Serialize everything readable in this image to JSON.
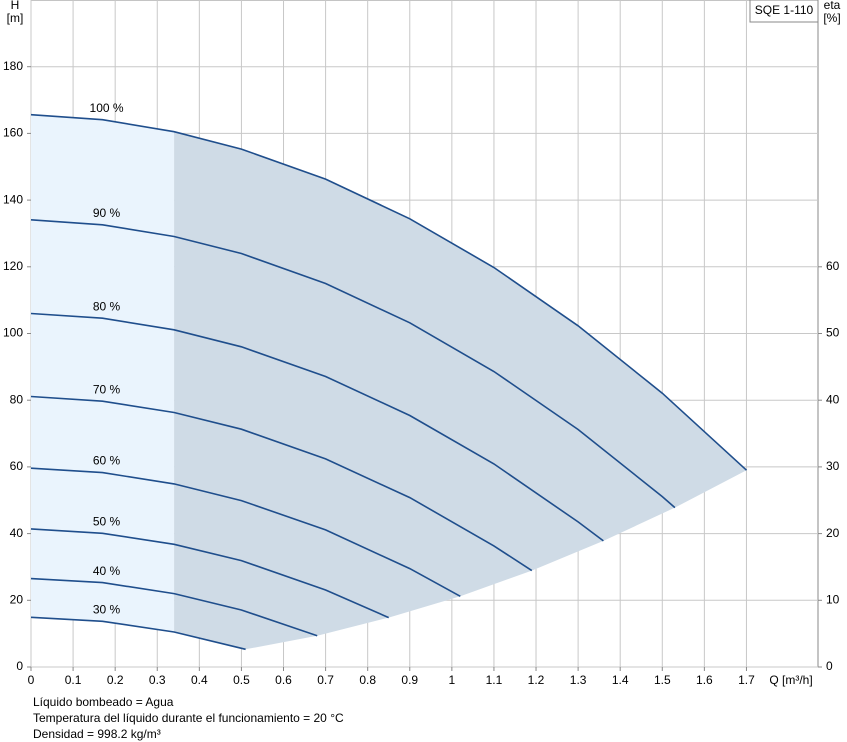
{
  "chart_data": {
    "type": "line",
    "legend_title": "SQE 1-110",
    "x_label": "Q [m³/h]",
    "y_label": [
      "H",
      "[m]"
    ],
    "y2_label": [
      "eta",
      "[%]"
    ],
    "xlim": [
      0,
      1.87
    ],
    "xticks": [
      0,
      0.1,
      0.2,
      0.3,
      0.4,
      0.5,
      0.6,
      0.7,
      0.8,
      0.9,
      1,
      1.1,
      1.2,
      1.3,
      1.4,
      1.5,
      1.6,
      1.7
    ],
    "ylim": [
      0,
      200
    ],
    "yticks": [
      0,
      20,
      40,
      60,
      80,
      100,
      120,
      140,
      160,
      180
    ],
    "y2lim": [
      0,
      100
    ],
    "y2ticks": [
      0,
      10,
      20,
      30,
      40,
      50,
      60
    ],
    "grid": true,
    "color": "#1f4e8c",
    "series": [
      {
        "name": "100 %",
        "x": [
          0,
          0.17,
          0.34,
          0.5,
          0.7,
          0.9,
          1.1,
          1.3,
          1.5,
          1.7
        ],
        "values": [
          165.6,
          164.1,
          160.5,
          155.3,
          146.3,
          134.4,
          119.8,
          102.3,
          82.1,
          59.0
        ]
      },
      {
        "name": "90 %",
        "x": [
          0,
          0.17,
          0.34,
          0.5,
          0.7,
          0.9,
          1.1,
          1.3,
          1.5,
          1.53
        ],
        "values": [
          134.1,
          132.6,
          129.1,
          124.0,
          115.0,
          103.2,
          88.6,
          71.2,
          51.1,
          47.8
        ]
      },
      {
        "name": "80 %",
        "x": [
          0,
          0.17,
          0.34,
          0.5,
          0.7,
          0.9,
          1.1,
          1.3,
          1.36
        ],
        "values": [
          106.0,
          104.6,
          101.1,
          96.0,
          87.1,
          75.4,
          60.9,
          43.5,
          37.8
        ]
      },
      {
        "name": "70 %",
        "x": [
          0,
          0.17,
          0.34,
          0.5,
          0.7,
          0.9,
          1.1,
          1.19
        ],
        "values": [
          81.1,
          79.7,
          76.3,
          71.3,
          62.4,
          50.8,
          36.3,
          28.9
        ]
      },
      {
        "name": "60 %",
        "x": [
          0,
          0.17,
          0.34,
          0.5,
          0.7,
          0.9,
          1.02
        ],
        "values": [
          59.6,
          58.3,
          54.9,
          49.9,
          41.1,
          29.5,
          21.2
        ]
      },
      {
        "name": "50 %",
        "x": [
          0,
          0.17,
          0.34,
          0.5,
          0.7,
          0.85
        ],
        "values": [
          41.4,
          40.1,
          36.8,
          31.9,
          23.1,
          14.8
        ]
      },
      {
        "name": "40 %",
        "x": [
          0,
          0.17,
          0.34,
          0.5,
          0.68
        ],
        "values": [
          26.5,
          25.3,
          22.0,
          17.1,
          9.4
        ]
      },
      {
        "name": "30 %",
        "x": [
          0,
          0.17,
          0.34,
          0.51
        ],
        "values": [
          14.9,
          13.7,
          10.5,
          5.3
        ]
      }
    ]
  },
  "notes": [
    "Líquido bombeado = Agua",
    "Temperatura del líquido durante el funcionamiento = 20 °C",
    "Densidad = 998.2 kg/m³"
  ]
}
